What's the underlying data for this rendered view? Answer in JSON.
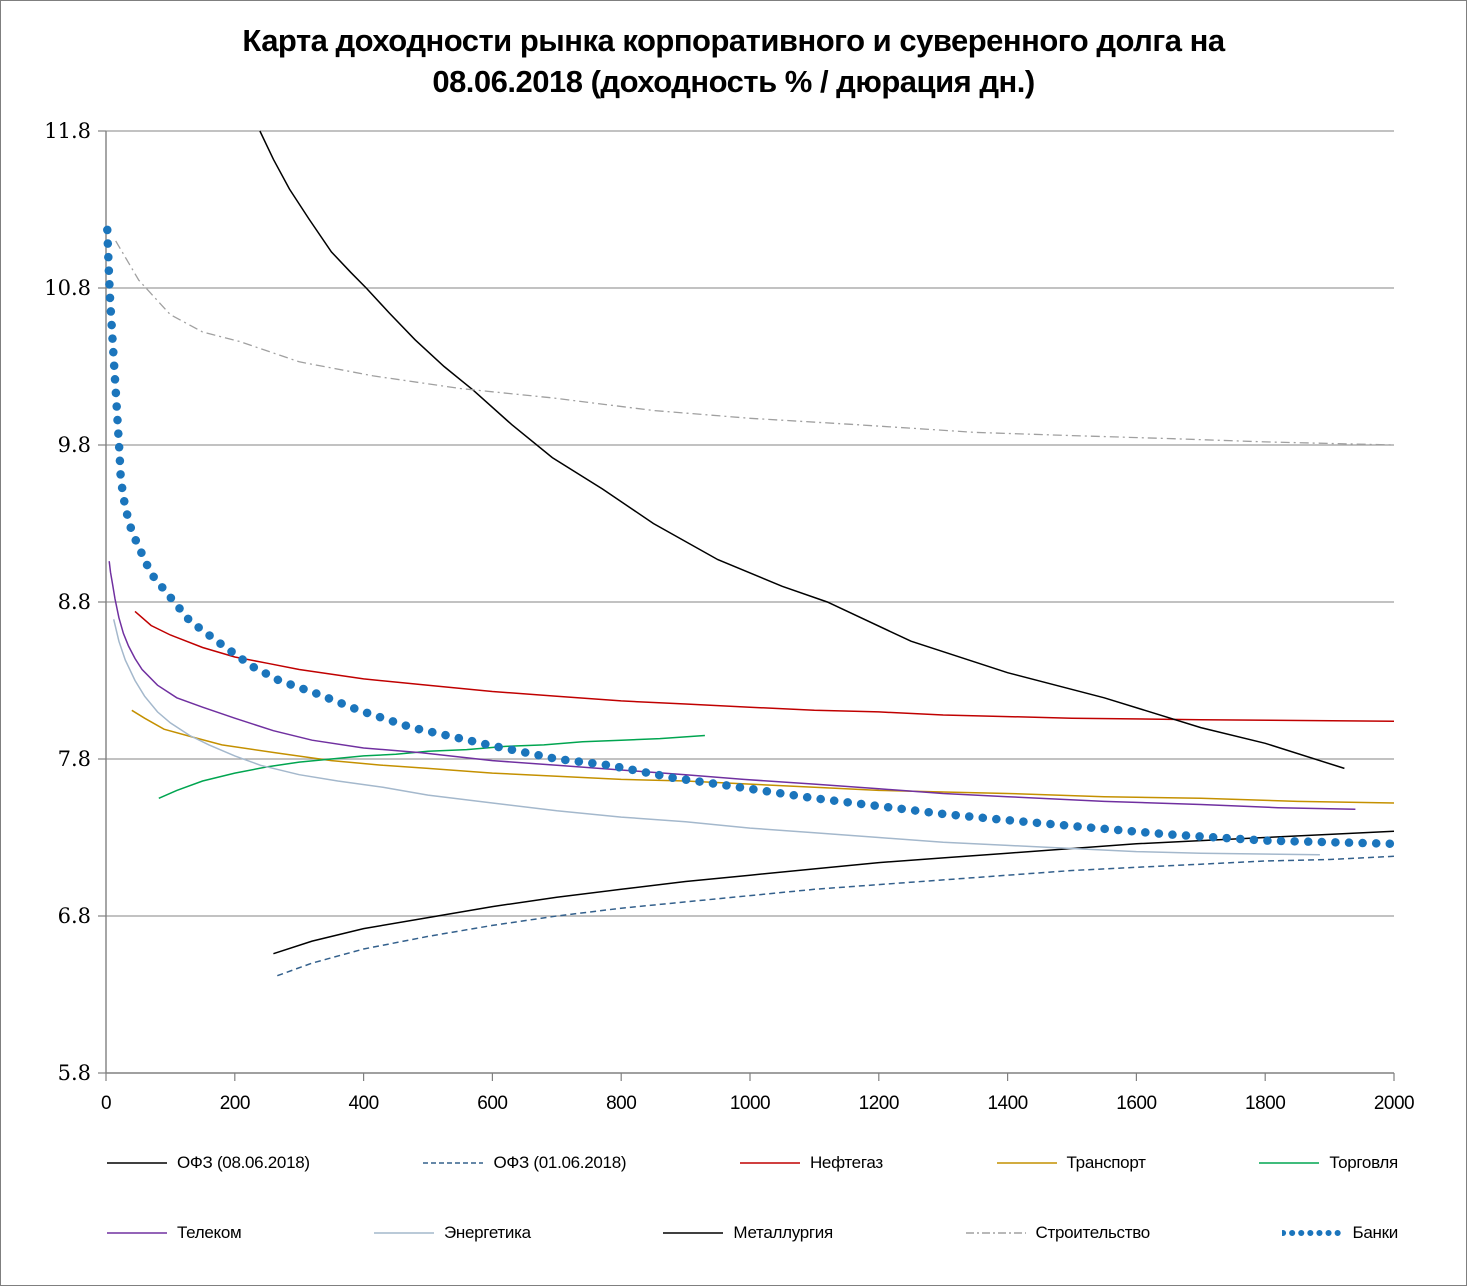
{
  "chart_data": {
    "type": "line",
    "title_lines": [
      "Карта доходности рынка корпоративного и суверенного долга на",
      "08.06.2018 (доходность % / дюрация дн.)"
    ],
    "xlabel": "",
    "ylabel": "",
    "xlim": [
      0,
      2000
    ],
    "ylim": [
      5.8,
      11.8
    ],
    "x_ticks": [
      0,
      200,
      400,
      600,
      800,
      1000,
      1200,
      1400,
      1600,
      1800,
      2000
    ],
    "y_ticks": [
      5.8,
      6.8,
      7.8,
      8.8,
      9.8,
      10.8,
      11.8
    ],
    "grid": "horizontal",
    "legend_position": "bottom",
    "axis_color": "#808080",
    "grid_color": "#9d9d9d",
    "background_color": "#ffffff",
    "series": [
      {
        "name": "ОФЗ (08.06.2018)",
        "color": "#000000",
        "style": "solid",
        "width": 1.5,
        "points": [
          [
            260,
            6.56
          ],
          [
            320,
            6.64
          ],
          [
            400,
            6.72
          ],
          [
            500,
            6.79
          ],
          [
            600,
            6.86
          ],
          [
            700,
            6.92
          ],
          [
            800,
            6.97
          ],
          [
            900,
            7.02
          ],
          [
            1000,
            7.06
          ],
          [
            1100,
            7.1
          ],
          [
            1200,
            7.14
          ],
          [
            1300,
            7.17
          ],
          [
            1400,
            7.2
          ],
          [
            1500,
            7.23
          ],
          [
            1600,
            7.26
          ],
          [
            1700,
            7.28
          ],
          [
            1800,
            7.3
          ],
          [
            1900,
            7.32
          ],
          [
            2000,
            7.34
          ]
        ]
      },
      {
        "name": "ОФЗ (01.06.2018)",
        "color": "#33608c",
        "style": "dashed",
        "width": 1.5,
        "points": [
          [
            266,
            6.42
          ],
          [
            320,
            6.5
          ],
          [
            400,
            6.59
          ],
          [
            500,
            6.67
          ],
          [
            600,
            6.74
          ],
          [
            700,
            6.8
          ],
          [
            800,
            6.85
          ],
          [
            900,
            6.89
          ],
          [
            1000,
            6.93
          ],
          [
            1100,
            6.97
          ],
          [
            1200,
            7.0
          ],
          [
            1300,
            7.03
          ],
          [
            1400,
            7.06
          ],
          [
            1500,
            7.09
          ],
          [
            1600,
            7.11
          ],
          [
            1700,
            7.13
          ],
          [
            1800,
            7.15
          ],
          [
            1900,
            7.16
          ],
          [
            2000,
            7.18
          ]
        ]
      },
      {
        "name": "Нефтегаз",
        "color": "#c00000",
        "style": "solid",
        "width": 1.5,
        "points": [
          [
            45,
            8.74
          ],
          [
            70,
            8.65
          ],
          [
            100,
            8.59
          ],
          [
            150,
            8.51
          ],
          [
            200,
            8.45
          ],
          [
            250,
            8.41
          ],
          [
            300,
            8.37
          ],
          [
            400,
            8.31
          ],
          [
            500,
            8.27
          ],
          [
            600,
            8.23
          ],
          [
            700,
            8.2
          ],
          [
            800,
            8.17
          ],
          [
            900,
            8.15
          ],
          [
            1000,
            8.13
          ],
          [
            1100,
            8.11
          ],
          [
            1200,
            8.1
          ],
          [
            1300,
            8.08
          ],
          [
            1400,
            8.07
          ],
          [
            1500,
            8.06
          ],
          [
            1700,
            8.05
          ],
          [
            2000,
            8.04
          ]
        ]
      },
      {
        "name": "Транспорт",
        "color": "#c49000",
        "style": "solid",
        "width": 1.5,
        "points": [
          [
            40,
            8.11
          ],
          [
            60,
            8.06
          ],
          [
            90,
            7.99
          ],
          [
            134,
            7.94
          ],
          [
            180,
            7.89
          ],
          [
            263,
            7.84
          ],
          [
            350,
            7.79
          ],
          [
            430,
            7.76
          ],
          [
            500,
            7.74
          ],
          [
            600,
            7.71
          ],
          [
            700,
            7.69
          ],
          [
            800,
            7.67
          ],
          [
            900,
            7.66
          ],
          [
            1000,
            7.64
          ],
          [
            1100,
            7.62
          ],
          [
            1200,
            7.6
          ],
          [
            1300,
            7.59
          ],
          [
            1400,
            7.58
          ],
          [
            1550,
            7.56
          ],
          [
            1700,
            7.55
          ],
          [
            1850,
            7.53
          ],
          [
            2000,
            7.52
          ]
        ]
      },
      {
        "name": "Торговля",
        "color": "#00a550",
        "style": "solid",
        "width": 1.5,
        "points": [
          [
            82,
            7.55
          ],
          [
            110,
            7.6
          ],
          [
            150,
            7.66
          ],
          [
            200,
            7.71
          ],
          [
            250,
            7.75
          ],
          [
            300,
            7.78
          ],
          [
            350,
            7.8
          ],
          [
            400,
            7.82
          ],
          [
            450,
            7.83
          ],
          [
            500,
            7.85
          ],
          [
            560,
            7.86
          ],
          [
            620,
            7.88
          ],
          [
            680,
            7.89
          ],
          [
            740,
            7.91
          ],
          [
            800,
            7.92
          ],
          [
            860,
            7.93
          ],
          [
            930,
            7.95
          ]
        ]
      },
      {
        "name": "Телеком",
        "color": "#7030a0",
        "style": "solid",
        "width": 1.5,
        "points": [
          [
            5,
            9.06
          ],
          [
            7,
            8.99
          ],
          [
            10,
            8.92
          ],
          [
            14,
            8.82
          ],
          [
            20,
            8.7
          ],
          [
            27,
            8.6
          ],
          [
            35,
            8.52
          ],
          [
            45,
            8.44
          ],
          [
            56,
            8.37
          ],
          [
            80,
            8.27
          ],
          [
            110,
            8.19
          ],
          [
            150,
            8.13
          ],
          [
            200,
            8.06
          ],
          [
            260,
            7.98
          ],
          [
            320,
            7.92
          ],
          [
            400,
            7.87
          ],
          [
            490,
            7.84
          ],
          [
            600,
            7.79
          ],
          [
            700,
            7.76
          ],
          [
            800,
            7.73
          ],
          [
            900,
            7.7
          ],
          [
            990,
            7.67
          ],
          [
            1100,
            7.64
          ],
          [
            1200,
            7.61
          ],
          [
            1300,
            7.58
          ],
          [
            1400,
            7.56
          ],
          [
            1550,
            7.53
          ],
          [
            1700,
            7.51
          ],
          [
            1820,
            7.49
          ],
          [
            1940,
            7.48
          ]
        ]
      },
      {
        "name": "Энергетика",
        "color": "#a4b8cc",
        "style": "solid",
        "width": 1.5,
        "points": [
          [
            12,
            8.69
          ],
          [
            20,
            8.55
          ],
          [
            30,
            8.43
          ],
          [
            45,
            8.3
          ],
          [
            60,
            8.2
          ],
          [
            80,
            8.1
          ],
          [
            100,
            8.03
          ],
          [
            130,
            7.95
          ],
          [
            160,
            7.89
          ],
          [
            200,
            7.82
          ],
          [
            240,
            7.76
          ],
          [
            300,
            7.7
          ],
          [
            360,
            7.66
          ],
          [
            430,
            7.62
          ],
          [
            500,
            7.57
          ],
          [
            600,
            7.52
          ],
          [
            700,
            7.47
          ],
          [
            800,
            7.43
          ],
          [
            900,
            7.4
          ],
          [
            1000,
            7.36
          ],
          [
            1100,
            7.33
          ],
          [
            1200,
            7.3
          ],
          [
            1300,
            7.27
          ],
          [
            1400,
            7.25
          ],
          [
            1500,
            7.23
          ],
          [
            1600,
            7.21
          ],
          [
            1700,
            7.2
          ],
          [
            1885,
            7.19
          ]
        ]
      },
      {
        "name": "Металлургия",
        "color": "#000000",
        "style": "solid",
        "width": 1.5,
        "points": [
          [
            239,
            11.8
          ],
          [
            260,
            11.62
          ],
          [
            285,
            11.43
          ],
          [
            315,
            11.24
          ],
          [
            350,
            11.03
          ],
          [
            380,
            10.9
          ],
          [
            404,
            10.8
          ],
          [
            440,
            10.64
          ],
          [
            480,
            10.47
          ],
          [
            525,
            10.3
          ],
          [
            570,
            10.15
          ],
          [
            630,
            9.93
          ],
          [
            693,
            9.72
          ],
          [
            771,
            9.52
          ],
          [
            850,
            9.3
          ],
          [
            950,
            9.07
          ],
          [
            1050,
            8.9
          ],
          [
            1120,
            8.8
          ],
          [
            1250,
            8.55
          ],
          [
            1400,
            8.35
          ],
          [
            1550,
            8.19
          ],
          [
            1700,
            8.0
          ],
          [
            1800,
            7.9
          ],
          [
            1923,
            7.74
          ]
        ]
      },
      {
        "name": "Строительство",
        "color": "#a0a0a0",
        "style": "dashdot",
        "width": 1.3,
        "points": [
          [
            15,
            11.1
          ],
          [
            51,
            10.85
          ],
          [
            100,
            10.63
          ],
          [
            150,
            10.52
          ],
          [
            207,
            10.46
          ],
          [
            300,
            10.33
          ],
          [
            415,
            10.24
          ],
          [
            550,
            10.16
          ],
          [
            693,
            10.1
          ],
          [
            850,
            10.02
          ],
          [
            1000,
            9.97
          ],
          [
            1164,
            9.93
          ],
          [
            1350,
            9.88
          ],
          [
            1500,
            9.86
          ],
          [
            1657,
            9.84
          ],
          [
            1800,
            9.82
          ],
          [
            2000,
            9.8
          ]
        ]
      },
      {
        "name": "Банки",
        "color": "#1b75bc",
        "style": "dotted",
        "width": 8.5,
        "points": [
          [
            2,
            11.17
          ],
          [
            4,
            10.95
          ],
          [
            6,
            10.75
          ],
          [
            9,
            10.55
          ],
          [
            12,
            10.35
          ],
          [
            15,
            10.15
          ],
          [
            18,
            9.95
          ],
          [
            21,
            9.75
          ],
          [
            23,
            9.58
          ],
          [
            30,
            9.4
          ],
          [
            40,
            9.25
          ],
          [
            52,
            9.14
          ],
          [
            70,
            8.98
          ],
          [
            98,
            8.84
          ],
          [
            130,
            8.68
          ],
          [
            176,
            8.54
          ],
          [
            227,
            8.39
          ],
          [
            269,
            8.3
          ],
          [
            325,
            8.22
          ],
          [
            393,
            8.11
          ],
          [
            475,
            8.0
          ],
          [
            605,
            7.88
          ],
          [
            700,
            7.8
          ],
          [
            782,
            7.76
          ],
          [
            880,
            7.68
          ],
          [
            984,
            7.62
          ],
          [
            1100,
            7.55
          ],
          [
            1200,
            7.5
          ],
          [
            1300,
            7.45
          ],
          [
            1400,
            7.41
          ],
          [
            1537,
            7.36
          ],
          [
            1650,
            7.32
          ],
          [
            1800,
            7.28
          ],
          [
            1900,
            7.27
          ],
          [
            2000,
            7.26
          ]
        ]
      }
    ]
  }
}
